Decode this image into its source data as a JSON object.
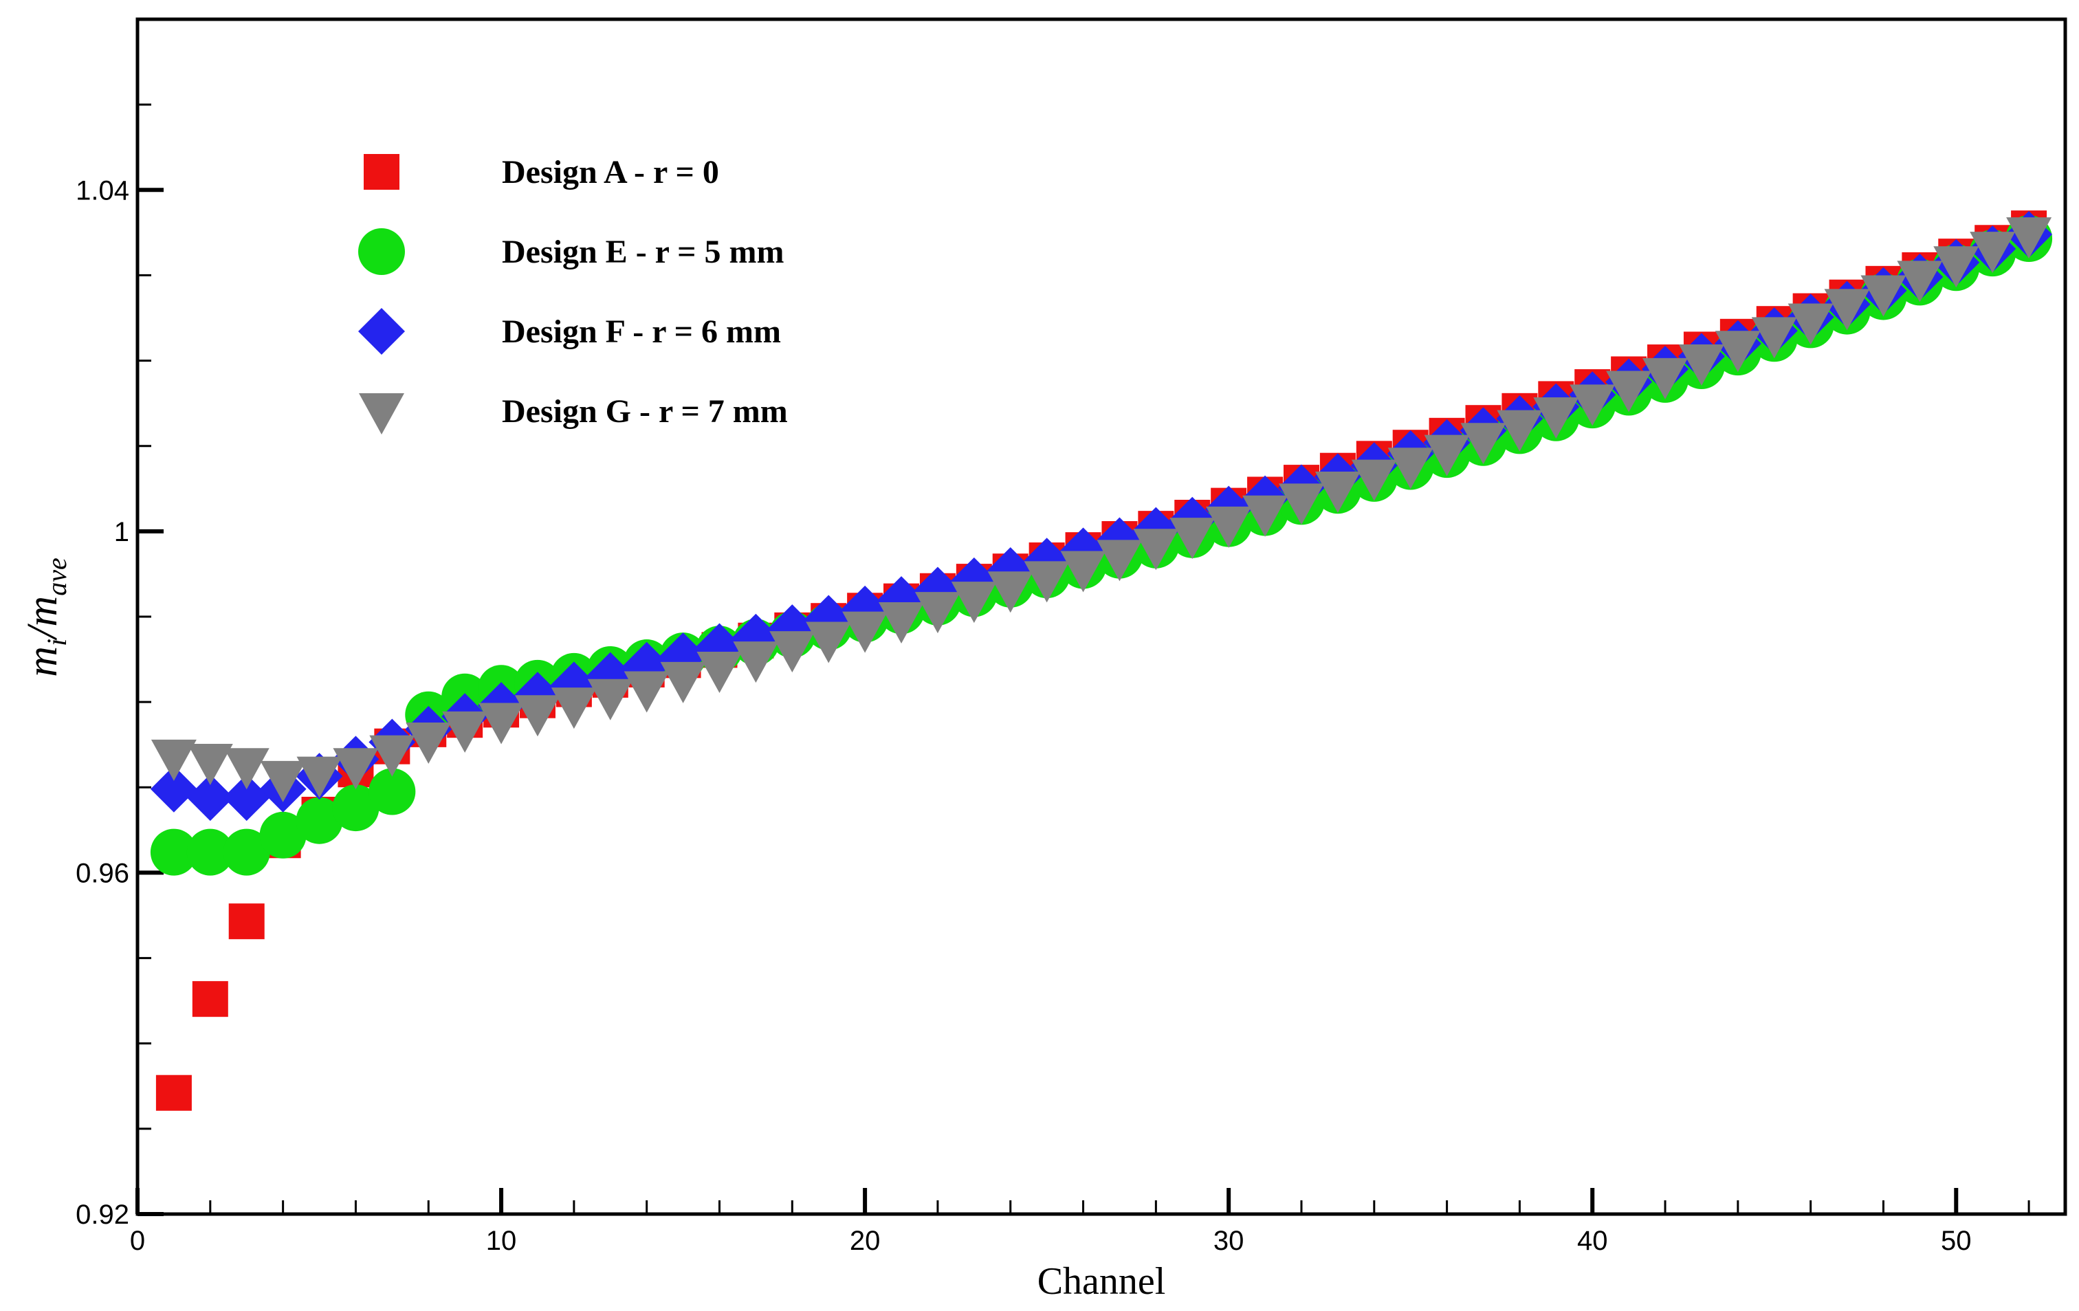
{
  "chart_data": {
    "type": "scatter",
    "title": "",
    "xlabel": "Channel",
    "ylabel": {
      "main1": "m",
      "sub1": "i",
      "sep": "/",
      "main2": "m",
      "sub2": "ave"
    },
    "xlim": [
      0,
      53
    ],
    "ylim": [
      0.92,
      1.06
    ],
    "xticks": [
      0,
      10,
      20,
      30,
      40,
      50
    ],
    "xtick_labels": [
      "0",
      "10",
      "20",
      "30",
      "40",
      "50"
    ],
    "yticks": [
      0.92,
      0.96,
      1.0,
      1.04
    ],
    "ytick_labels": [
      "0.92",
      "0.96",
      "1",
      "1.04"
    ],
    "grid": false,
    "legend_position": "top-left",
    "series": [
      {
        "name": "Design A - r = 0",
        "marker": "square",
        "color": "#ee1111",
        "x": [
          1,
          2,
          3,
          4,
          5,
          6,
          7,
          8,
          9,
          10,
          11,
          12,
          13,
          14,
          15,
          16,
          17,
          18,
          19,
          20,
          21,
          22,
          23,
          24,
          25,
          26,
          27,
          28,
          29,
          30,
          31,
          32,
          33,
          34,
          35,
          36,
          37,
          38,
          39,
          40,
          41,
          42,
          43,
          44,
          45,
          46,
          47,
          48,
          49,
          50,
          51,
          52
        ],
        "values": [
          0.9342,
          0.9452,
          0.9543,
          0.9638,
          0.9668,
          0.9721,
          0.9748,
          0.9768,
          0.9779,
          0.9791,
          0.9802,
          0.9815,
          0.9826,
          0.9838,
          0.9849,
          0.9861,
          0.9872,
          0.9884,
          0.9895,
          0.9907,
          0.9918,
          0.993,
          0.9941,
          0.9953,
          0.9966,
          0.9978,
          0.9991,
          1.0003,
          1.0016,
          1.003,
          1.0043,
          1.0057,
          1.0071,
          1.0085,
          1.0098,
          1.0112,
          1.0127,
          1.0141,
          1.0155,
          1.0169,
          1.0184,
          1.0198,
          1.0213,
          1.0228,
          1.0243,
          1.0258,
          1.0274,
          1.029,
          1.0306,
          1.0322,
          1.0338,
          1.0355
        ]
      },
      {
        "name": "Design E - r = 5 mm",
        "marker": "circle",
        "color": "#11dd11",
        "x": [
          1,
          2,
          3,
          4,
          5,
          6,
          7,
          8,
          9,
          10,
          11,
          12,
          13,
          14,
          15,
          16,
          17,
          18,
          19,
          20,
          21,
          22,
          23,
          24,
          25,
          26,
          27,
          28,
          29,
          30,
          31,
          32,
          33,
          34,
          35,
          36,
          37,
          38,
          39,
          40,
          41,
          42,
          43,
          44,
          45,
          46,
          47,
          48,
          49,
          50,
          51,
          52
        ],
        "values": [
          0.9624,
          0.9624,
          0.9624,
          0.9644,
          0.9661,
          0.9676,
          0.9695,
          0.9785,
          0.9806,
          0.9816,
          0.9822,
          0.983,
          0.9838,
          0.9846,
          0.9854,
          0.9862,
          0.987,
          0.9879,
          0.9888,
          0.9897,
          0.9907,
          0.9917,
          0.9927,
          0.9938,
          0.9949,
          0.996,
          0.9972,
          0.9984,
          0.9996,
          1.0009,
          1.0022,
          1.0035,
          1.0048,
          1.0062,
          1.0076,
          1.009,
          1.0104,
          1.0118,
          1.0133,
          1.0148,
          1.0163,
          1.0178,
          1.0194,
          1.021,
          1.0226,
          1.0242,
          1.0258,
          1.0275,
          1.0292,
          1.0309,
          1.0326,
          1.0343
        ]
      },
      {
        "name": "Design F - r = 6 mm",
        "marker": "diamond",
        "color": "#2424ee",
        "x": [
          1,
          2,
          3,
          4,
          5,
          6,
          7,
          8,
          9,
          10,
          11,
          12,
          13,
          14,
          15,
          16,
          17,
          18,
          19,
          20,
          21,
          22,
          23,
          24,
          25,
          26,
          27,
          28,
          29,
          30,
          31,
          32,
          33,
          34,
          35,
          36,
          37,
          38,
          39,
          40,
          41,
          42,
          43,
          44,
          45,
          46,
          47,
          48,
          49,
          50,
          51,
          52
        ],
        "values": [
          0.9698,
          0.9688,
          0.9688,
          0.9698,
          0.9713,
          0.9733,
          0.9753,
          0.9768,
          0.9783,
          0.9796,
          0.9808,
          0.982,
          0.9831,
          0.9843,
          0.9854,
          0.9865,
          0.9876,
          0.9887,
          0.9898,
          0.9909,
          0.992,
          0.9931,
          0.9942,
          0.9954,
          0.9965,
          0.9977,
          0.9989,
          1.0001,
          1.0013,
          1.0026,
          1.0038,
          1.0051,
          1.0064,
          1.0077,
          1.0091,
          1.0104,
          1.0118,
          1.0132,
          1.0146,
          1.016,
          1.0175,
          1.019,
          1.0205,
          1.022,
          1.0235,
          1.0251,
          1.0266,
          1.0282,
          1.0298,
          1.0315,
          1.0331,
          1.0348
        ]
      },
      {
        "name": "Design G - r = 7 mm",
        "marker": "triangle-down",
        "color": "#808080",
        "x": [
          1,
          2,
          3,
          4,
          5,
          6,
          7,
          8,
          9,
          10,
          11,
          12,
          13,
          14,
          15,
          16,
          17,
          18,
          19,
          20,
          21,
          22,
          23,
          24,
          25,
          26,
          27,
          28,
          29,
          30,
          31,
          32,
          33,
          34,
          35,
          36,
          37,
          38,
          39,
          40,
          41,
          42,
          43,
          44,
          45,
          46,
          47,
          48,
          49,
          50,
          51,
          52
        ],
        "values": [
          0.9735,
          0.973,
          0.9725,
          0.971,
          0.9715,
          0.9725,
          0.974,
          0.9755,
          0.9768,
          0.9778,
          0.9787,
          0.9796,
          0.9806,
          0.9815,
          0.9826,
          0.9838,
          0.985,
          0.9862,
          0.9873,
          0.9885,
          0.9896,
          0.9908,
          0.992,
          0.9932,
          0.9944,
          0.9956,
          0.9969,
          0.9982,
          0.9995,
          1.0008,
          1.0021,
          1.0035,
          1.0049,
          1.0063,
          1.0077,
          1.0092,
          1.0106,
          1.0121,
          1.0136,
          1.0151,
          1.0167,
          1.0182,
          1.0198,
          1.0214,
          1.023,
          1.0246,
          1.0263,
          1.0279,
          1.0296,
          1.0313,
          1.033,
          1.0347
        ]
      }
    ]
  }
}
